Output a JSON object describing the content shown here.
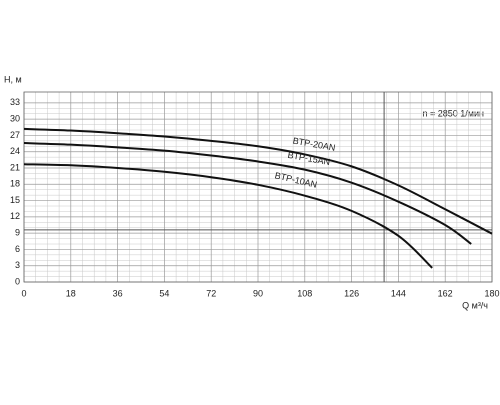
{
  "chart_data": {
    "type": "line",
    "y_label": "H, м",
    "x_label": "Q м³/ч",
    "annotation": "n = 2850 1/мин",
    "xlim": [
      0,
      180
    ],
    "ylim": [
      0,
      35
    ],
    "xticks": [
      0,
      18,
      36,
      54,
      72,
      90,
      108,
      126,
      144,
      162,
      180
    ],
    "yticks": [
      0,
      3,
      6,
      9,
      12,
      15,
      18,
      21,
      24,
      27,
      30,
      33
    ],
    "grid": true,
    "reference_lines": {
      "x": 138.5,
      "y": 9.6
    },
    "series": [
      {
        "name": "BTP-20AN",
        "color": "#111111",
        "x": [
          0,
          18,
          36,
          54,
          72,
          90,
          108,
          126,
          144,
          162,
          180
        ],
        "values": [
          28.2,
          27.9,
          27.4,
          26.8,
          26,
          25,
          23.5,
          21.3,
          17.8,
          13.4,
          8.9
        ]
      },
      {
        "name": "BTP-15AN",
        "color": "#111111",
        "x": [
          0,
          18,
          36,
          54,
          72,
          90,
          108,
          126,
          144,
          162,
          172
        ],
        "values": [
          25.6,
          25.3,
          24.8,
          24.2,
          23.3,
          22.2,
          20.7,
          18.3,
          14.8,
          10.5,
          7
        ]
      },
      {
        "name": "BTP-10AN",
        "color": "#111111",
        "x": [
          0,
          18,
          36,
          54,
          72,
          90,
          108,
          126,
          144,
          157
        ],
        "values": [
          21.7,
          21.5,
          21,
          20.3,
          19.3,
          17.9,
          15.9,
          13.1,
          8.5,
          2.6
        ]
      }
    ]
  }
}
